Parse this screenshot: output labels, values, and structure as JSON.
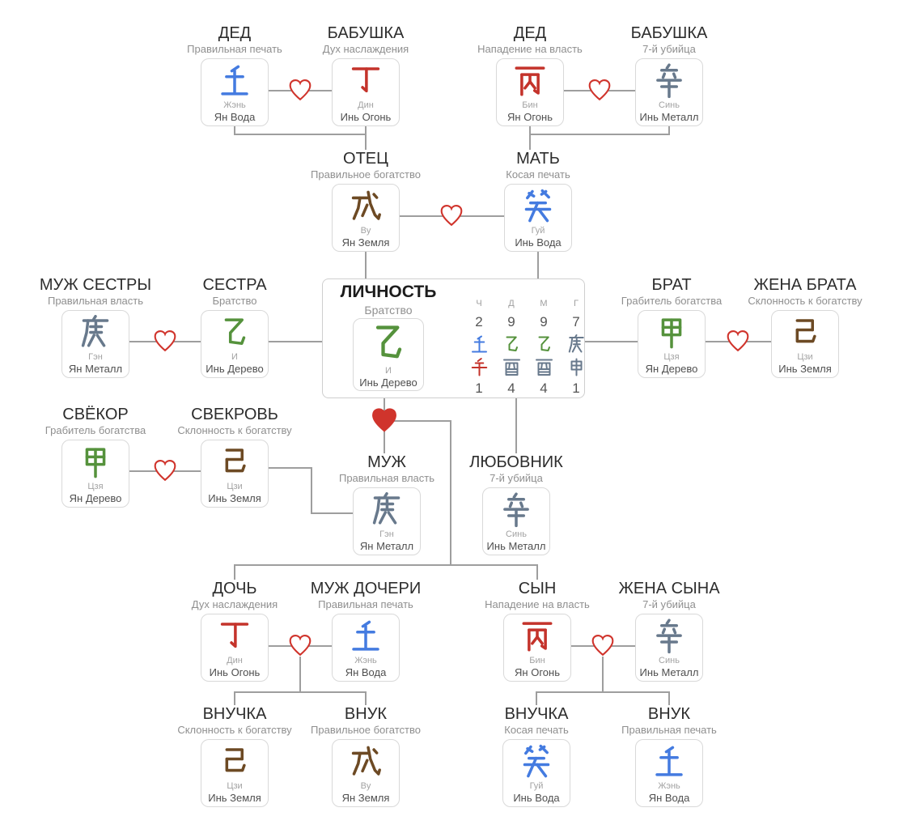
{
  "palette": {
    "water": "#447be0",
    "fire": "#c4332b",
    "wood": "#55923c",
    "metal": "#68798c",
    "earth": "#6d4a24",
    "heart": "#d0342c",
    "line": "#9e9e9e"
  },
  "lichnost": {
    "title": "ЛИЧНОСТЬ",
    "subtitle": "Братство",
    "hanzi": "乙",
    "pinyin": "И",
    "element": "Инь Дерево",
    "color": "wood",
    "pillars": {
      "headers": [
        "Ч",
        "Д",
        "М",
        "Г"
      ],
      "top_numbers": [
        "2",
        "9",
        "9",
        "7"
      ],
      "stems": [
        {
          "ch": "壬",
          "color": "water"
        },
        {
          "ch": "乙",
          "color": "wood"
        },
        {
          "ch": "乙",
          "color": "wood"
        },
        {
          "ch": "庚",
          "color": "metal"
        }
      ],
      "branches": [
        {
          "ch": "午",
          "color": "fire"
        },
        {
          "ch": "酉",
          "color": "metal"
        },
        {
          "ch": "酉",
          "color": "metal"
        },
        {
          "ch": "申",
          "color": "metal"
        }
      ],
      "bottom_numbers": [
        "1",
        "4",
        "4",
        "1"
      ]
    }
  },
  "persons": {
    "ded_left": {
      "title": "ДЕД",
      "subtitle": "Правильная печать",
      "hanzi": "壬",
      "pinyin": "Жэнь",
      "element": "Ян Вода",
      "color": "water"
    },
    "babushka_left": {
      "title": "БАБУШКА",
      "subtitle": "Дух наслаждения",
      "hanzi": "丁",
      "pinyin": "Дин",
      "element": "Инь Огонь",
      "color": "fire"
    },
    "ded_right": {
      "title": "ДЕД",
      "subtitle": "Нападение на власть",
      "hanzi": "丙",
      "pinyin": "Бин",
      "element": "Ян Огонь",
      "color": "fire"
    },
    "babushka_right": {
      "title": "БАБУШКА",
      "subtitle": "7-й убийца",
      "hanzi": "辛",
      "pinyin": "Синь",
      "element": "Инь Металл",
      "color": "metal"
    },
    "otec": {
      "title": "ОТЕЦ",
      "subtitle": "Правильное богатство",
      "hanzi": "戊",
      "pinyin": "Ву",
      "element": "Ян Земля",
      "color": "earth"
    },
    "mat": {
      "title": "МАТЬ",
      "subtitle": "Косая печать",
      "hanzi": "癸",
      "pinyin": "Гуй",
      "element": "Инь Вода",
      "color": "water"
    },
    "muzh_sestry": {
      "title": "МУЖ СЕСТРЫ",
      "subtitle": "Правильная власть",
      "hanzi": "庚",
      "pinyin": "Гэн",
      "element": "Ян Металл",
      "color": "metal"
    },
    "sestra": {
      "title": "СЕСТРА",
      "subtitle": "Братство",
      "hanzi": "乙",
      "pinyin": "И",
      "element": "Инь Дерево",
      "color": "wood"
    },
    "brat": {
      "title": "БРАТ",
      "subtitle": "Грабитель богатства",
      "hanzi": "甲",
      "pinyin": "Цзя",
      "element": "Ян Дерево",
      "color": "wood"
    },
    "zhena_brata": {
      "title": "ЖЕНА БРАТА",
      "subtitle": "Склонность к богатству",
      "hanzi": "己",
      "pinyin": "Цзи",
      "element": "Инь Земля",
      "color": "earth"
    },
    "svekor": {
      "title": "СВЁКОР",
      "subtitle": "Грабитель богатства",
      "hanzi": "甲",
      "pinyin": "Цзя",
      "element": "Ян Дерево",
      "color": "wood"
    },
    "svekrov": {
      "title": "СВЕКРОВЬ",
      "subtitle": "Склонность к богатству",
      "hanzi": "己",
      "pinyin": "Цзи",
      "element": "Инь Земля",
      "color": "earth"
    },
    "muzh": {
      "title": "МУЖ",
      "subtitle": "Правильная власть",
      "hanzi": "庚",
      "pinyin": "Гэн",
      "element": "Ян Металл",
      "color": "metal"
    },
    "lyubovnik": {
      "title": "ЛЮБОВНИК",
      "subtitle": "7-й убийца",
      "hanzi": "辛",
      "pinyin": "Синь",
      "element": "Инь Металл",
      "color": "metal"
    },
    "doch": {
      "title": "ДОЧЬ",
      "subtitle": "Дух наслаждения",
      "hanzi": "丁",
      "pinyin": "Дин",
      "element": "Инь Огонь",
      "color": "fire"
    },
    "muzh_docheri": {
      "title": "МУЖ ДОЧЕРИ",
      "subtitle": "Правильная печать",
      "hanzi": "壬",
      "pinyin": "Жэнь",
      "element": "Ян Вода",
      "color": "water"
    },
    "syn": {
      "title": "СЫН",
      "subtitle": "Нападение на власть",
      "hanzi": "丙",
      "pinyin": "Бин",
      "element": "Ян Огонь",
      "color": "fire"
    },
    "zhena_syna": {
      "title": "ЖЕНА СЫНА",
      "subtitle": "7-й убийца",
      "hanzi": "辛",
      "pinyin": "Синь",
      "element": "Инь Металл",
      "color": "metal"
    },
    "vnuchka_left": {
      "title": "ВНУЧКА",
      "subtitle": "Склонность к богатству",
      "hanzi": "己",
      "pinyin": "Цзи",
      "element": "Инь Земля",
      "color": "earth"
    },
    "vnuk_left": {
      "title": "ВНУК",
      "subtitle": "Правильное богатство",
      "hanzi": "戊",
      "pinyin": "Ву",
      "element": "Ян Земля",
      "color": "earth"
    },
    "vnuchka_right": {
      "title": "ВНУЧКА",
      "subtitle": "Косая печать",
      "hanzi": "癸",
      "pinyin": "Гуй",
      "element": "Инь Вода",
      "color": "water"
    },
    "vnuk_right": {
      "title": "ВНУК",
      "subtitle": "Правильная печать",
      "hanzi": "壬",
      "pinyin": "Жэнь",
      "element": "Ян Вода",
      "color": "water"
    }
  }
}
